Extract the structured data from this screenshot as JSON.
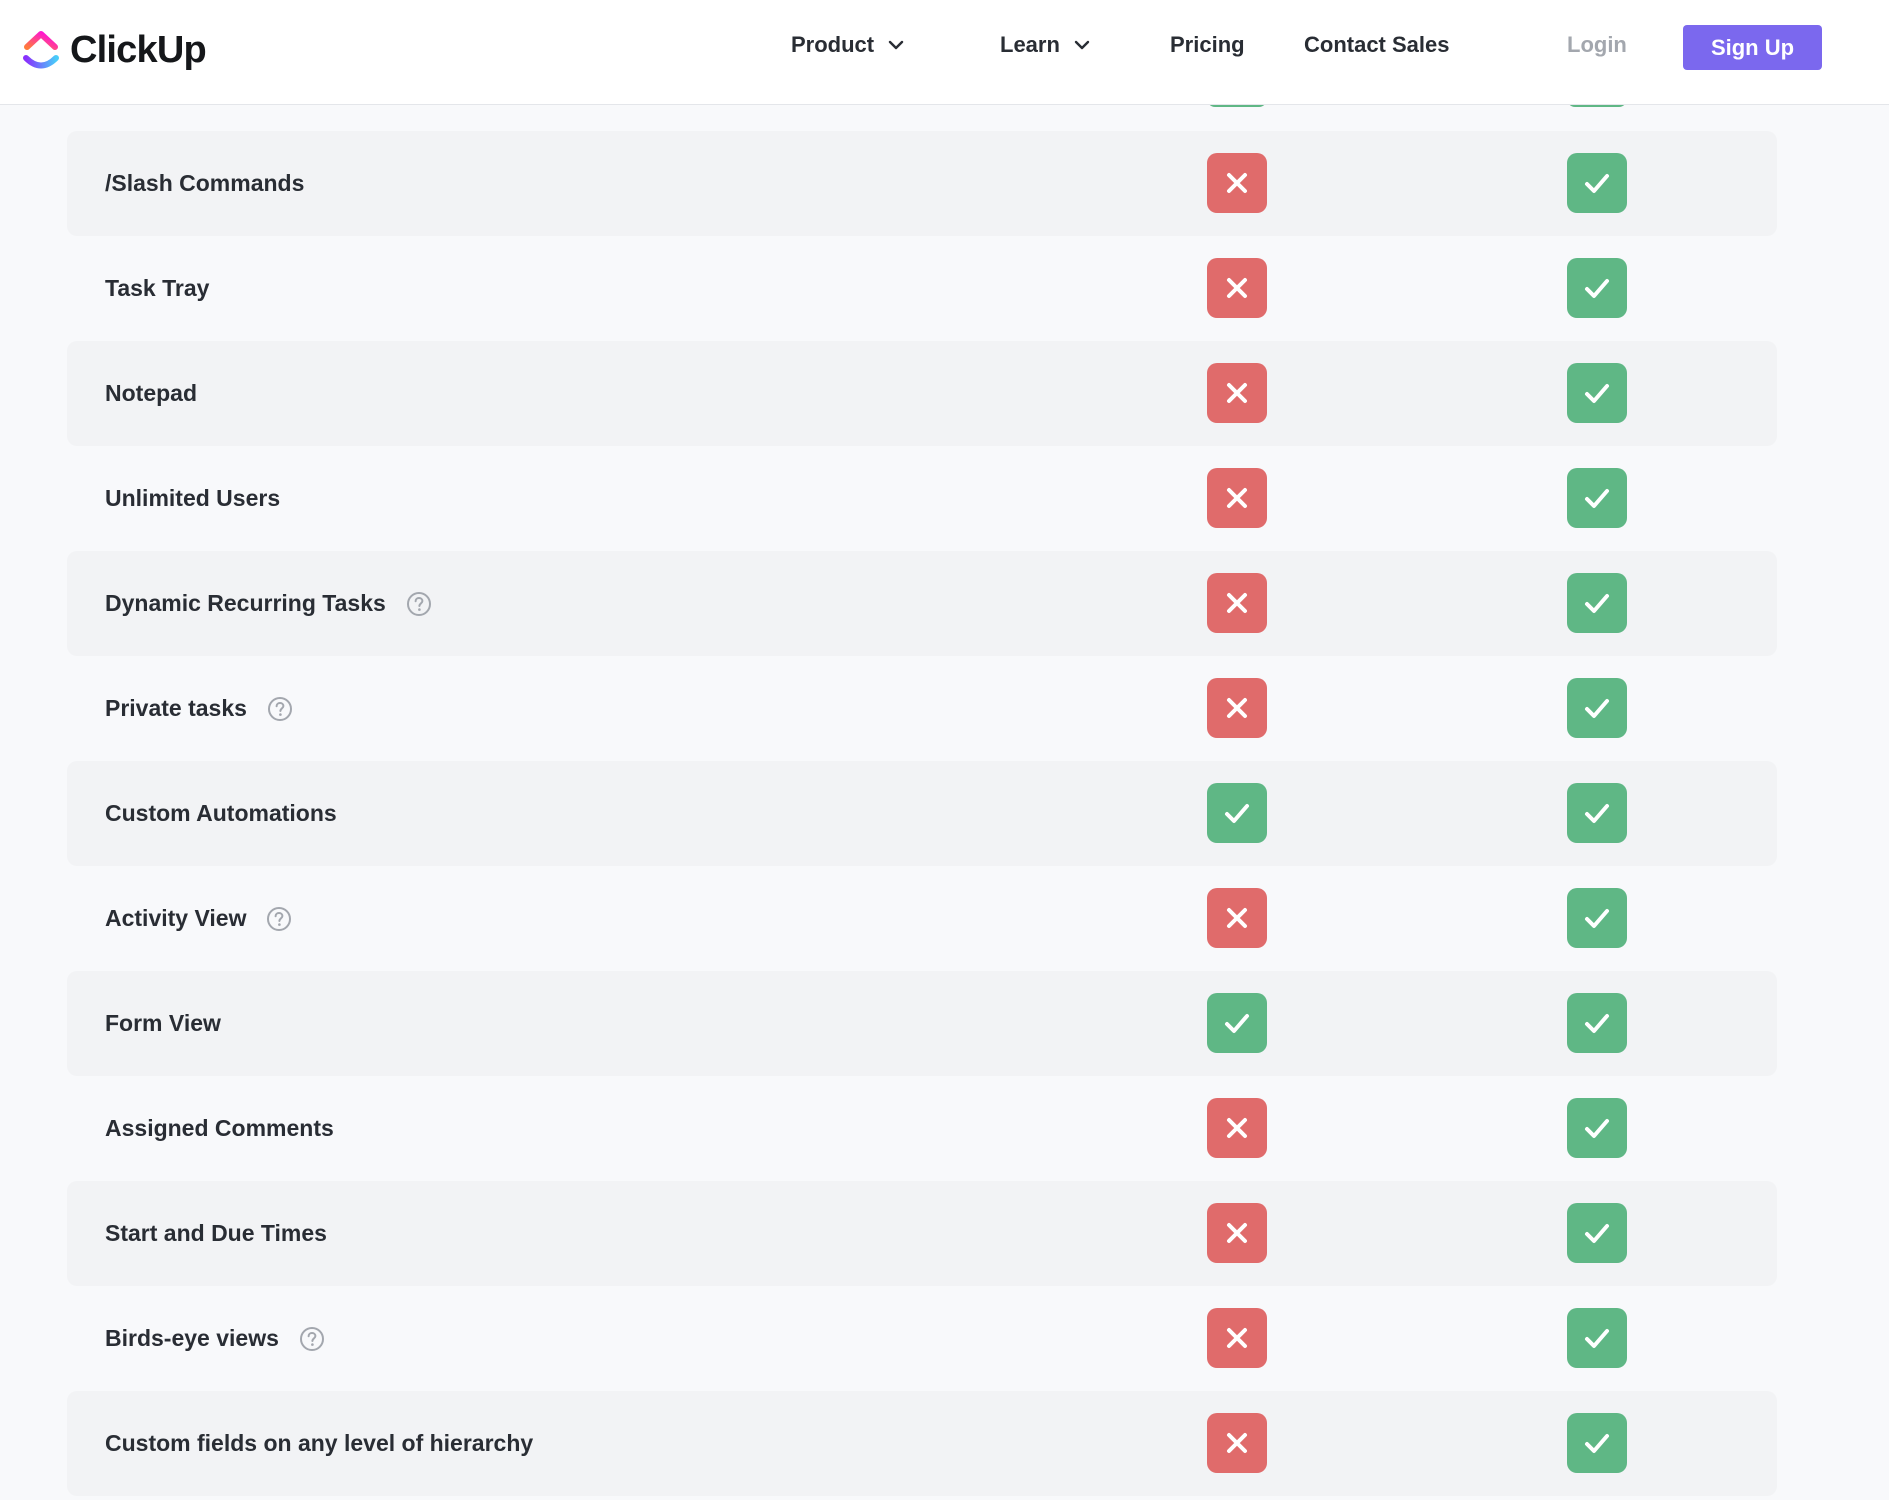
{
  "header": {
    "brand": "ClickUp",
    "nav": [
      {
        "label": "Product",
        "has_dropdown": true
      },
      {
        "label": "Learn",
        "has_dropdown": true
      },
      {
        "label": "Pricing",
        "has_dropdown": false
      },
      {
        "label": "Contact Sales",
        "has_dropdown": false
      }
    ],
    "login_label": "Login",
    "signup_label": "Sign Up"
  },
  "colors": {
    "brand_accent": "#7b68ee",
    "check_green": "#5fb785",
    "cross_red": "#e06b6b"
  },
  "icons": {
    "included": "check-icon",
    "not_included": "x-icon",
    "help": "question-circle-icon"
  },
  "features": [
    {
      "label": "/Slash Commands",
      "has_help": false,
      "col_a": false,
      "col_b": true
    },
    {
      "label": "Task Tray",
      "has_help": false,
      "col_a": false,
      "col_b": true
    },
    {
      "label": "Notepad",
      "has_help": false,
      "col_a": false,
      "col_b": true
    },
    {
      "label": "Unlimited Users",
      "has_help": false,
      "col_a": false,
      "col_b": true
    },
    {
      "label": "Dynamic Recurring Tasks",
      "has_help": true,
      "col_a": false,
      "col_b": true
    },
    {
      "label": "Private tasks",
      "has_help": true,
      "col_a": false,
      "col_b": true
    },
    {
      "label": "Custom Automations",
      "has_help": false,
      "col_a": true,
      "col_b": true
    },
    {
      "label": "Activity View",
      "has_help": true,
      "col_a": false,
      "col_b": true
    },
    {
      "label": "Form View",
      "has_help": false,
      "col_a": true,
      "col_b": true
    },
    {
      "label": "Assigned Comments",
      "has_help": false,
      "col_a": false,
      "col_b": true
    },
    {
      "label": "Start and Due Times",
      "has_help": false,
      "col_a": false,
      "col_b": true
    },
    {
      "label": "Birds-eye views",
      "has_help": true,
      "col_a": false,
      "col_b": true
    },
    {
      "label": "Custom fields on any level of hierarchy",
      "has_help": false,
      "col_a": false,
      "col_b": true
    }
  ]
}
